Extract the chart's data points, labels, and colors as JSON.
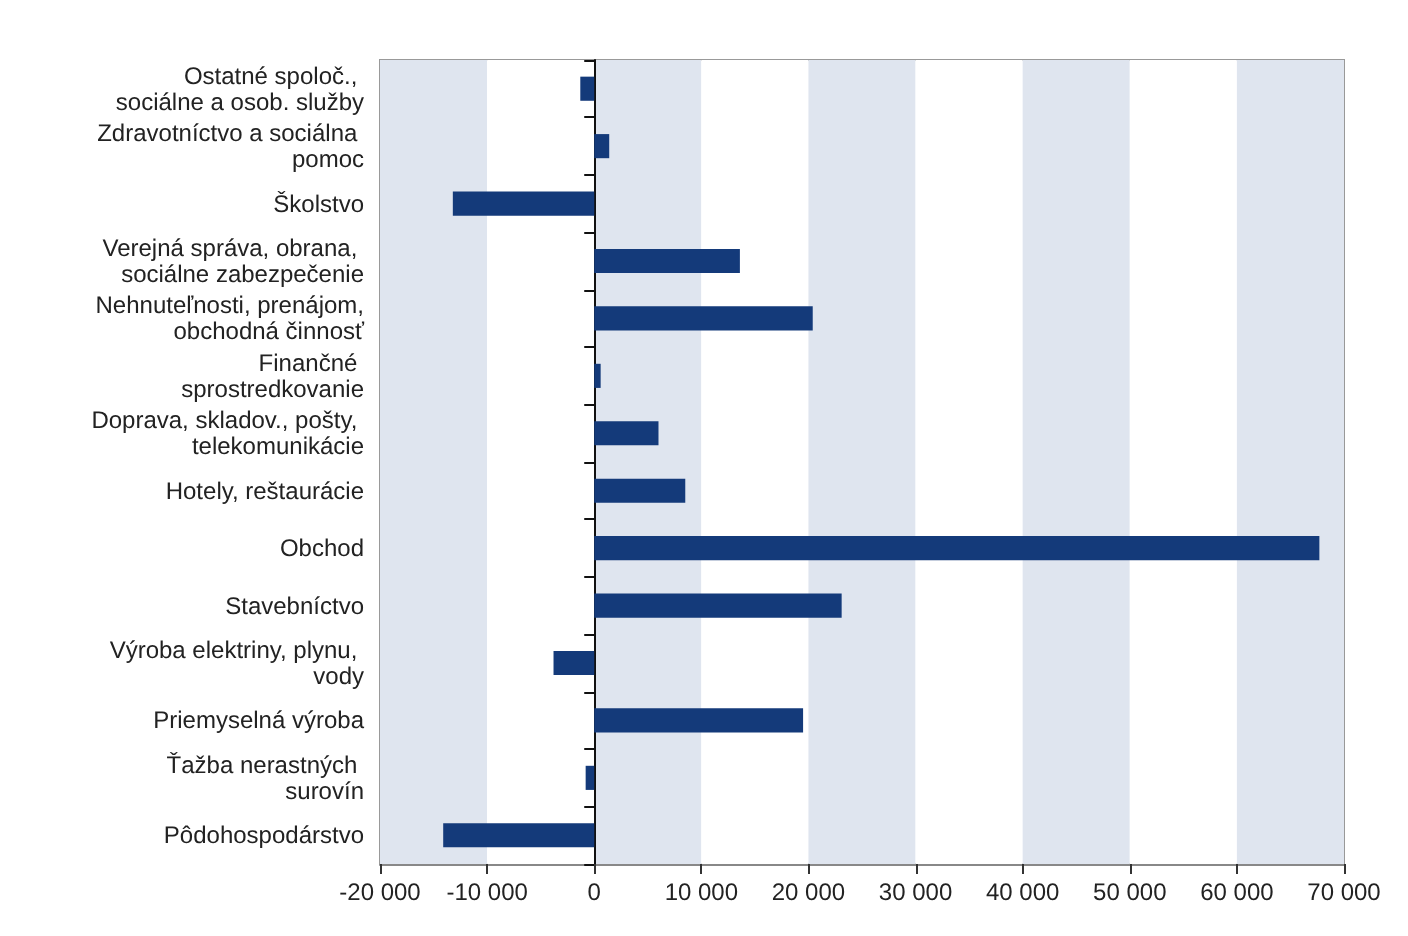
{
  "chart_data": {
    "type": "bar",
    "orientation": "horizontal",
    "categories": [
      "Ostatné spoloč., sociálne a osob. služby",
      "Zdravotníctvo a sociálna pomoc",
      "Školstvo",
      "Verejná správa, obrana, sociálne zabezpečenie",
      "Nehnuteľnosti, prenájom, obchodná činnosť",
      "Finančné sprostredkovanie",
      "Doprava, skladov., pošty, telekomunikácie",
      "Hotely, reštaurácie",
      "Obchod",
      "Stavebníctvo",
      "Výroba elektriny, plynu, vody",
      "Priemyselná výroba",
      "Ťažba nerastných surovín",
      "Pôdohospodárstvo"
    ],
    "values": [
      -1300,
      1400,
      -13200,
      13600,
      20400,
      600,
      6000,
      8500,
      67700,
      23100,
      -3800,
      19500,
      -800,
      -14100
    ],
    "color": "#143a7a",
    "xlim": [
      -20000,
      70000
    ],
    "xticks": [
      {
        "value": -20000,
        "label": "-20 000"
      },
      {
        "value": -10000,
        "label": "-10 000"
      },
      0,
      {
        "value": 10000,
        "label": "10 000"
      },
      {
        "value": 20000,
        "label": "20 000"
      },
      {
        "value": 30000,
        "label": "30 000"
      },
      {
        "value": 40000,
        "label": "40 000"
      },
      {
        "value": 50000,
        "label": "50 000"
      },
      {
        "value": 60000,
        "label": "60 000"
      },
      {
        "value": 70000,
        "label": "70 000"
      }
    ],
    "grid": "x"
  }
}
